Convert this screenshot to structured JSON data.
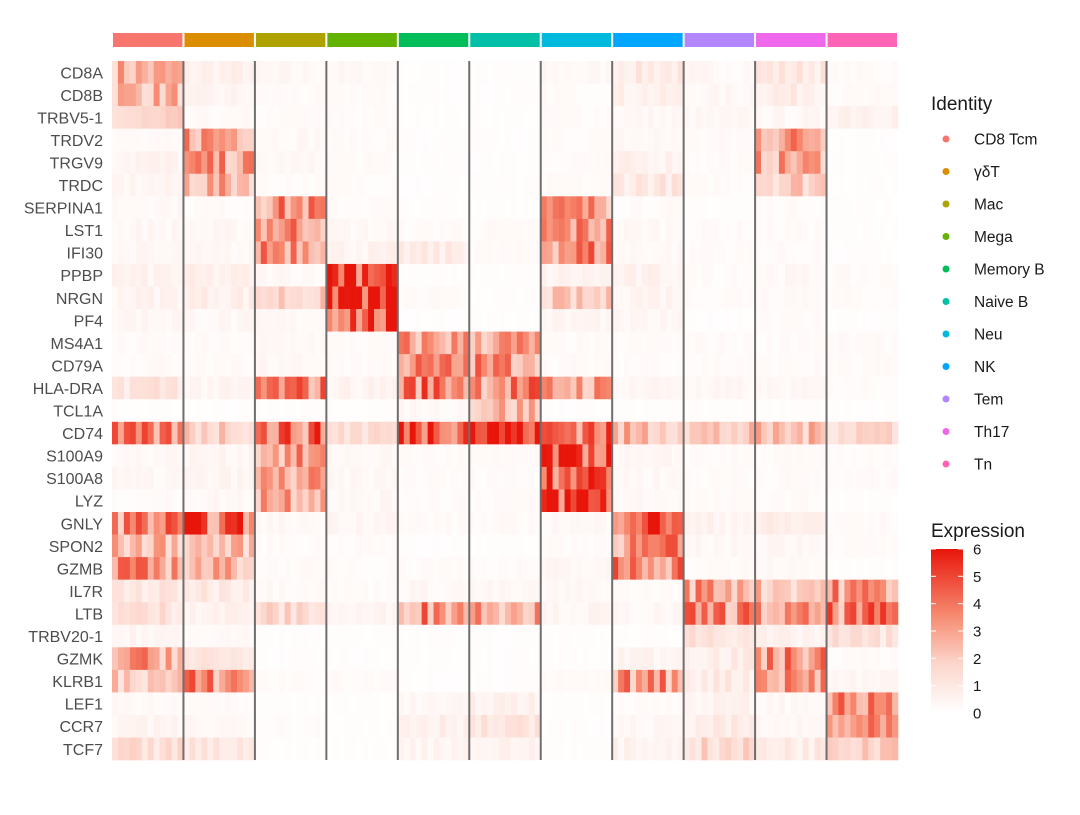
{
  "chart_data": {
    "type": "heatmap",
    "genes": [
      "CD8A",
      "CD8B",
      "TRBV5-1",
      "TRDV2",
      "TRGV9",
      "TRDC",
      "SERPINA1",
      "LST1",
      "IFI30",
      "PPBP",
      "NRGN",
      "PF4",
      "MS4A1",
      "CD79A",
      "HLA-DRA",
      "TCL1A",
      "CD74",
      "S100A9",
      "S100A8",
      "LYZ",
      "GNLY",
      "SPON2",
      "GZMB",
      "IL7R",
      "LTB",
      "TRBV20-1",
      "GZMK",
      "KLRB1",
      "LEF1",
      "CCR7",
      "TCF7"
    ],
    "groups": [
      {
        "name": "CD8 Tcm",
        "color": "#F8766D"
      },
      {
        "name": "γδT",
        "color": "#DB8E00"
      },
      {
        "name": "Mac",
        "color": "#AEA200"
      },
      {
        "name": "Mega",
        "color": "#64B200"
      },
      {
        "name": "Memory B",
        "color": "#00BD5C"
      },
      {
        "name": "Naive B",
        "color": "#00C1A7"
      },
      {
        "name": "Neu",
        "color": "#00BADE"
      },
      {
        "name": "NK",
        "color": "#00A6FF"
      },
      {
        "name": "Tem",
        "color": "#B385FF"
      },
      {
        "name": "Th17",
        "color": "#EF67EB"
      },
      {
        "name": "Tn",
        "color": "#FF63B6"
      }
    ],
    "mean_expression": [
      [
        2.6,
        0.6,
        0.3,
        0.3,
        0.1,
        0.1,
        0.3,
        0.9,
        0.3,
        1.0,
        0.2
      ],
      [
        2.5,
        0.4,
        0.2,
        0.2,
        0.1,
        0.1,
        0.2,
        0.6,
        0.3,
        0.8,
        0.2
      ],
      [
        1.5,
        0.2,
        0.2,
        0.2,
        0.1,
        0.1,
        0.2,
        0.3,
        0.3,
        0.3,
        0.7
      ],
      [
        0.2,
        3.3,
        0.3,
        0.2,
        0.1,
        0.1,
        0.2,
        0.3,
        0.2,
        3.2,
        0.1
      ],
      [
        0.5,
        3.0,
        0.3,
        0.2,
        0.1,
        0.1,
        0.2,
        0.6,
        0.2,
        2.8,
        0.1
      ],
      [
        0.4,
        2.6,
        0.2,
        0.2,
        0.1,
        0.1,
        0.2,
        1.0,
        0.2,
        2.0,
        0.1
      ],
      [
        0.3,
        0.2,
        3.3,
        0.2,
        0.1,
        0.1,
        3.1,
        0.2,
        0.1,
        0.2,
        0.1
      ],
      [
        0.3,
        0.3,
        3.5,
        0.3,
        0.2,
        0.2,
        3.3,
        0.3,
        0.2,
        0.2,
        0.1
      ],
      [
        0.3,
        0.3,
        3.8,
        0.5,
        0.8,
        0.2,
        3.6,
        0.3,
        0.2,
        0.2,
        0.1
      ],
      [
        0.5,
        0.6,
        0.3,
        5.5,
        0.1,
        0.1,
        0.5,
        0.5,
        0.2,
        0.3,
        0.2
      ],
      [
        0.5,
        0.7,
        1.8,
        5.6,
        0.2,
        0.1,
        1.8,
        0.5,
        0.2,
        0.3,
        0.2
      ],
      [
        0.4,
        0.3,
        0.3,
        4.6,
        0.1,
        0.1,
        0.4,
        0.3,
        0.1,
        0.2,
        0.1
      ],
      [
        0.2,
        0.2,
        0.3,
        0.2,
        3.0,
        3.0,
        0.2,
        0.2,
        0.2,
        0.2,
        0.2
      ],
      [
        0.2,
        0.2,
        0.3,
        0.2,
        3.3,
        3.3,
        0.2,
        0.2,
        0.2,
        0.2,
        0.2
      ],
      [
        1.2,
        0.4,
        3.6,
        0.5,
        3.9,
        3.6,
        3.0,
        0.4,
        0.3,
        0.3,
        0.2
      ],
      [
        0.1,
        0.1,
        0.1,
        0.1,
        0.3,
        2.5,
        0.1,
        0.1,
        0.1,
        0.1,
        0.1
      ],
      [
        3.4,
        2.0,
        4.0,
        1.5,
        5.6,
        5.8,
        4.4,
        2.4,
        2.0,
        2.2,
        1.8
      ],
      [
        0.3,
        0.4,
        3.0,
        0.3,
        0.2,
        0.2,
        5.0,
        0.3,
        0.2,
        0.2,
        0.2
      ],
      [
        0.3,
        0.4,
        2.8,
        0.3,
        0.2,
        0.2,
        5.2,
        0.3,
        0.2,
        0.2,
        0.2
      ],
      [
        0.2,
        0.3,
        3.2,
        0.3,
        0.2,
        0.2,
        5.0,
        0.3,
        0.2,
        0.2,
        0.1
      ],
      [
        3.6,
        4.2,
        0.3,
        0.4,
        0.2,
        0.2,
        0.3,
        5.3,
        0.5,
        0.7,
        0.2
      ],
      [
        2.4,
        2.2,
        0.2,
        0.2,
        0.1,
        0.1,
        0.2,
        3.3,
        0.3,
        0.4,
        0.2
      ],
      [
        3.2,
        2.5,
        0.2,
        0.2,
        0.2,
        0.2,
        0.3,
        3.8,
        0.2,
        0.3,
        0.1
      ],
      [
        1.0,
        1.0,
        0.3,
        0.2,
        0.3,
        0.3,
        0.3,
        0.2,
        3.1,
        2.2,
        3.2
      ],
      [
        1.3,
        0.6,
        1.5,
        0.4,
        3.5,
        3.2,
        0.4,
        0.3,
        3.5,
        2.9,
        3.6
      ],
      [
        0.4,
        0.3,
        0.1,
        0.1,
        0.1,
        0.1,
        0.1,
        0.1,
        1.3,
        0.5,
        1.2
      ],
      [
        3.0,
        1.0,
        0.1,
        0.1,
        0.1,
        0.1,
        0.1,
        0.5,
        0.8,
        3.3,
        0.2
      ],
      [
        2.0,
        3.4,
        0.2,
        0.2,
        0.1,
        0.1,
        0.2,
        3.2,
        0.9,
        3.3,
        0.4
      ],
      [
        0.3,
        0.2,
        0.1,
        0.1,
        0.3,
        0.6,
        0.1,
        0.2,
        0.5,
        0.3,
        3.2
      ],
      [
        0.4,
        0.3,
        0.2,
        0.1,
        0.7,
        1.0,
        0.1,
        0.3,
        0.8,
        0.3,
        3.0
      ],
      [
        1.3,
        1.0,
        0.1,
        0.1,
        0.5,
        0.5,
        0.1,
        0.5,
        1.5,
        0.9,
        2.4
      ]
    ],
    "legend_identity": {
      "title": "Identity",
      "placement": "right"
    },
    "color_scale": {
      "title": "Expression",
      "min": 0,
      "max": 6,
      "ticks": [
        "6",
        "5",
        "4",
        "3",
        "2",
        "1",
        "0"
      ],
      "low": "#FFFFFF",
      "high": "#E8160A"
    },
    "grid": false
  }
}
